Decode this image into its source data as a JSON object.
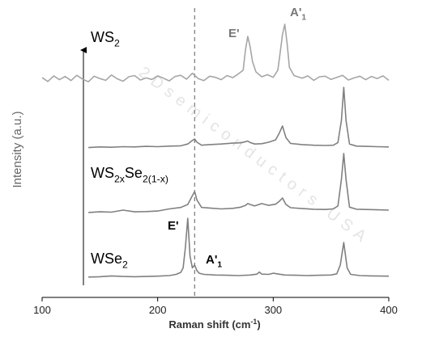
{
  "chart_data": {
    "type": "line",
    "x_label": [
      {
        "text": "Raman shift (cm"
      },
      {
        "text": "-1",
        "sup": true
      },
      {
        "text": ")"
      }
    ],
    "y_label": "Intensity (a.u.)",
    "watermark": "2Dsemiconductors USA",
    "xlim": [
      100,
      400
    ],
    "xticks": [
      100,
      200,
      300,
      400
    ],
    "ylim": [
      0,
      100
    ],
    "ref_line_x": 232,
    "series": [
      {
        "color": "#a6a6a6",
        "x": [
          100,
          105,
          110,
          115,
          120,
          125,
          130,
          135,
          140,
          145,
          150,
          155,
          160,
          165,
          170,
          175,
          180,
          185,
          190,
          195,
          200,
          205,
          210,
          215,
          220,
          225,
          230,
          235,
          240,
          245,
          250,
          255,
          260,
          265,
          270,
          274,
          276,
          278,
          280,
          282,
          285,
          290,
          295,
          300,
          304,
          306,
          308,
          310,
          312,
          314,
          318,
          325,
          330,
          335,
          340,
          345,
          350,
          355,
          360,
          365,
          370,
          375,
          380,
          385,
          390,
          395,
          400
        ],
        "values": [
          74.5,
          73.2,
          75.1,
          73.8,
          74.9,
          73.5,
          75.3,
          74.0,
          73.1,
          75.0,
          74.2,
          73.6,
          75.4,
          74.1,
          73.3,
          74.8,
          75.2,
          73.7,
          74.4,
          73.9,
          75.1,
          74.3,
          73.4,
          74.9,
          75.3,
          74.0,
          76.0,
          74.2,
          73.5,
          75.0,
          74.6,
          73.8,
          75.2,
          74.5,
          75.8,
          77,
          84,
          88.5,
          85,
          80,
          76.5,
          74.8,
          75.5,
          74.6,
          77,
          83,
          89,
          92.6,
          86,
          78,
          75.2,
          74.3,
          75.1,
          73.6,
          74.8,
          75.0,
          73.9,
          74.6,
          75.3,
          73.7,
          74.4,
          75.0,
          73.8,
          74.9,
          74.2,
          75.1,
          73.6
        ]
      },
      {
        "color": "#808080",
        "x": [
          140,
          150,
          160,
          170,
          180,
          190,
          200,
          210,
          220,
          226,
          230,
          232,
          234,
          238,
          245,
          255,
          265,
          272,
          276,
          278,
          280,
          284,
          290,
          296,
          302,
          305,
          308,
          311,
          315,
          325,
          335,
          345,
          352,
          356,
          359,
          361,
          363,
          366,
          372,
          380,
          390,
          400
        ],
        "values": [
          50.8,
          51.0,
          50.9,
          51.1,
          51.0,
          51.2,
          51.1,
          51.3,
          51.4,
          52,
          53.2,
          53.7,
          52.6,
          51.6,
          51.8,
          52.0,
          52.3,
          52.4,
          52.8,
          53.0,
          52.5,
          52.0,
          52.1,
          52.6,
          53.4,
          55.5,
          58.1,
          54.2,
          52.2,
          51.8,
          51.6,
          51.5,
          51.6,
          52.5,
          60,
          71.2,
          60,
          52,
          51.3,
          51.2,
          51.1,
          51.0
        ]
      },
      {
        "color": "#808080",
        "x": [
          140,
          150,
          160,
          170,
          180,
          190,
          200,
          210,
          220,
          226,
          230,
          232,
          234,
          238,
          245,
          255,
          265,
          272,
          276,
          278,
          280,
          284,
          290,
          296,
          302,
          305,
          308,
          311,
          315,
          325,
          335,
          345,
          352,
          356,
          359,
          361,
          363,
          366,
          372,
          380,
          390,
          400
        ],
        "values": [
          28.8,
          29.0,
          28.9,
          29.6,
          29.0,
          29.1,
          29.3,
          30.0,
          30.5,
          31.5,
          34.5,
          35.9,
          33,
          30.5,
          30.3,
          30.0,
          30.2,
          30.6,
          31.2,
          31.8,
          31.5,
          31.0,
          31.8,
          31.2,
          31.6,
          32.5,
          33.7,
          31.5,
          30.4,
          30.1,
          29.9,
          29.8,
          30,
          31,
          40,
          48.8,
          40,
          30.6,
          29.9,
          29.8,
          29.7,
          29.6
        ]
      },
      {
        "color": "#808080",
        "x": [
          140,
          150,
          160,
          170,
          180,
          190,
          200,
          210,
          216,
          220,
          222,
          224,
          226,
          228,
          230,
          232,
          234,
          236,
          240,
          250,
          260,
          270,
          280,
          286,
          288,
          290,
          296,
          300,
          310,
          320,
          330,
          340,
          350,
          355,
          358,
          361,
          364,
          367,
          375,
          385,
          400
        ],
        "values": [
          6.9,
          7.0,
          7.3,
          7.1,
          7.0,
          7.1,
          7.2,
          7.4,
          7.8,
          8.5,
          10,
          17,
          26.8,
          14,
          10,
          11,
          9,
          8.2,
          7.8,
          7.6,
          7.5,
          7.4,
          7.6,
          7.9,
          8.6,
          7.9,
          7.8,
          8.2,
          7.6,
          7.5,
          7.4,
          7.5,
          7.6,
          8,
          11,
          18.6,
          10,
          7.8,
          7.4,
          7.3,
          7.2
        ]
      }
    ],
    "labels": [
      {
        "parts": [
          {
            "text": "WS"
          },
          {
            "text": "2",
            "sub": true
          }
        ]
      },
      {
        "parts": [
          {
            "text": "E'"
          }
        ],
        "bold": true
      },
      {
        "parts": [
          {
            "text": "A'"
          },
          {
            "text": "1",
            "sub": true
          }
        ],
        "bold": true
      },
      {
        "parts": [
          {
            "text": "WS"
          },
          {
            "text": "2x",
            "sub": true
          },
          {
            "text": "Se"
          },
          {
            "text": "2(1-x)",
            "sub": true
          }
        ]
      },
      {
        "parts": [
          {
            "text": "E'"
          }
        ],
        "bold": true
      },
      {
        "parts": [
          {
            "text": "A'"
          },
          {
            "text": "1",
            "sub": true
          }
        ],
        "bold": true
      },
      {
        "parts": [
          {
            "text": "WSe"
          },
          {
            "text": "2",
            "sub": true
          }
        ]
      }
    ]
  }
}
